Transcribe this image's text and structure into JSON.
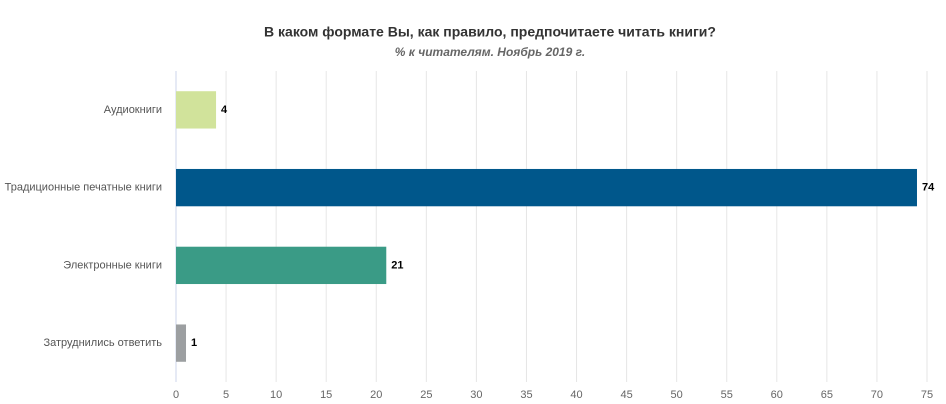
{
  "chart_data": {
    "type": "bar",
    "orientation": "horizontal",
    "title": "В каком формате Вы, как правило, предпочитаете читать книги?",
    "subtitle": "% к читателям. Ноябрь 2019 г.",
    "categories": [
      "Аудиокниги",
      "Традиционные печатные книги",
      "Электронные книги",
      "Затруднились ответить"
    ],
    "values": [
      4,
      74,
      21,
      1
    ],
    "colors": [
      "#d1e39b",
      "#00578b",
      "#3a9b86",
      "#9c9fa1"
    ],
    "xlim": [
      0,
      75
    ],
    "xticks": [
      0,
      5,
      10,
      15,
      20,
      25,
      30,
      35,
      40,
      45,
      50,
      55,
      60,
      65,
      70,
      75
    ],
    "grid": true
  }
}
